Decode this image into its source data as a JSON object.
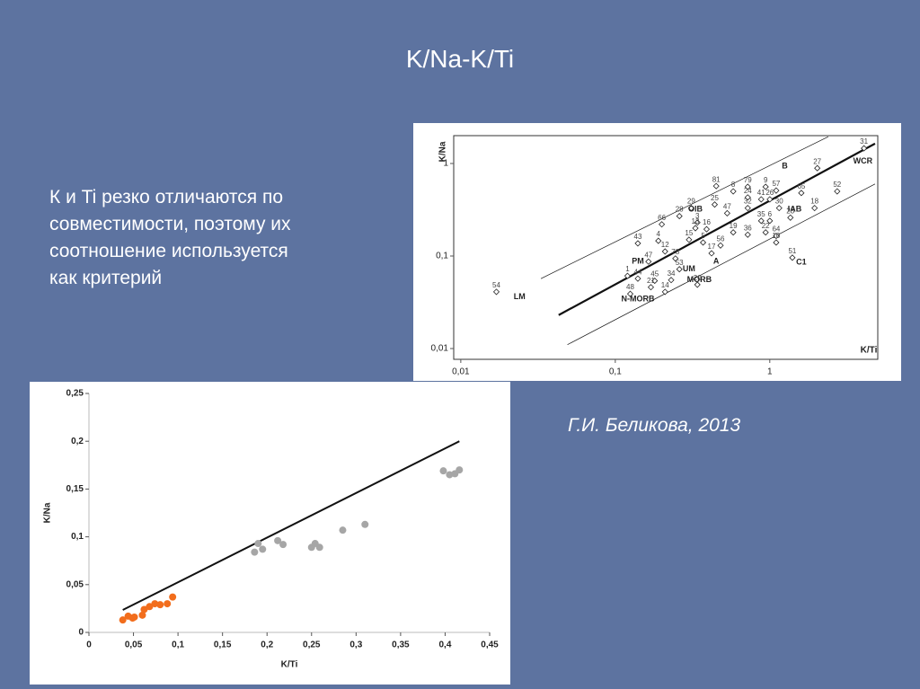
{
  "title": "K/Na-K/Ti",
  "body": [
    "К и Ti резко отличаются по",
    "совместимости, поэтому их",
    "соотношение используется",
    "как критерий"
  ],
  "citation": "Г.И. Беликова, 2013",
  "chart_data": [
    {
      "type": "scatter",
      "xlabel": "K/Ti",
      "ylabel": "K/Na",
      "log": true,
      "xlim": [
        0.009,
        5
      ],
      "ylim": [
        0.01,
        2
      ],
      "xticks": [
        {
          "value": 0.01,
          "label": "0,01"
        },
        {
          "value": 0.1,
          "label": "0,1"
        },
        1
      ],
      "yticks": [
        {
          "value": 0.01,
          "label": "0,01"
        },
        {
          "value": 0.1,
          "label": "0,1"
        },
        1
      ],
      "series": [
        {
          "color": "#222",
          "marker": "diamond",
          "labels": [
            "54",
            "31",
            "27",
            "52",
            "18",
            "65",
            "81",
            "79",
            "9",
            "57",
            "8",
            "24",
            "41",
            "26",
            "29",
            "25",
            "30",
            "32",
            "47",
            "28",
            "66",
            "3",
            "23",
            "35",
            "6",
            "13",
            "16",
            "43",
            "4",
            "12",
            "15",
            "19",
            "22",
            "64",
            "10",
            "56",
            "36",
            "17",
            "5",
            "51",
            "47",
            "78",
            "1",
            "44",
            "45",
            "20",
            "53",
            "21",
            "14",
            "48",
            "34"
          ],
          "x": [
            0.017,
            4.07,
            2.03,
            2.73,
            1.95,
            1.6,
            0.45,
            0.72,
            0.94,
            1.1,
            0.58,
            0.72,
            0.88,
            1.0,
            0.31,
            0.44,
            1.15,
            0.72,
            0.53,
            0.26,
            0.2,
            0.34,
            1.36,
            0.88,
            1.0,
            0.33,
            0.39,
            0.14,
            0.19,
            0.21,
            0.3,
            0.58,
            0.94,
            1.1,
            1.1,
            0.48,
            0.72,
            0.42,
            0.37,
            1.4,
            0.164,
            0.245,
            0.12,
            0.14,
            0.18,
            0.34,
            0.26,
            0.17,
            0.21,
            0.125,
            0.23
          ],
          "y": [
            0.041,
            1.46,
            0.89,
            0.5,
            0.33,
            0.48,
            0.57,
            0.56,
            0.56,
            0.51,
            0.5,
            0.43,
            0.41,
            0.41,
            0.33,
            0.36,
            0.33,
            0.33,
            0.29,
            0.27,
            0.22,
            0.23,
            0.26,
            0.24,
            0.24,
            0.2,
            0.195,
            0.137,
            0.146,
            0.112,
            0.15,
            0.18,
            0.18,
            0.165,
            0.14,
            0.13,
            0.17,
            0.107,
            0.14,
            0.096,
            0.087,
            0.094,
            0.061,
            0.057,
            0.054,
            0.049,
            0.072,
            0.046,
            0.041,
            0.039,
            0.055
          ]
        }
      ],
      "lines": [
        {
          "width": 2.2,
          "x": [
            0.043,
            4.8
          ],
          "y": [
            0.023,
            1.64
          ]
        },
        {
          "width": 0.7,
          "x": [
            0.033,
            2.39
          ],
          "y": [
            0.057,
            1.95
          ]
        },
        {
          "width": 0.7,
          "x": [
            0.049,
            4.8
          ],
          "y": [
            0.011,
            0.6
          ]
        }
      ],
      "annotations": [
        {
          "text": "LM",
          "x": 0.024,
          "y": 0.036
        },
        {
          "text": "WCR",
          "x": 4.0,
          "y": 1.05
        },
        {
          "text": "B",
          "x": 1.25,
          "y": 0.93
        },
        {
          "text": "OIB",
          "x": 0.33,
          "y": 0.32
        },
        {
          "text": "IAB",
          "x": 1.45,
          "y": 0.32
        },
        {
          "text": "PM",
          "x": 0.14,
          "y": 0.087
        },
        {
          "text": "A",
          "x": 0.45,
          "y": 0.087
        },
        {
          "text": "UM",
          "x": 0.3,
          "y": 0.072
        },
        {
          "text": "MORB",
          "x": 0.35,
          "y": 0.055
        },
        {
          "text": "N-MORB",
          "x": 0.14,
          "y": 0.034
        },
        {
          "text": "C1",
          "x": 1.6,
          "y": 0.085
        }
      ]
    },
    {
      "type": "scatter",
      "xlabel": "K/Ti",
      "ylabel": "K/Na",
      "log": false,
      "xlim": [
        0,
        0.45
      ],
      "ylim": [
        0,
        0.25
      ],
      "xticks": [
        0,
        {
          "value": 0.05,
          "label": "0,05"
        },
        {
          "value": 0.1,
          "label": "0,1"
        },
        {
          "value": 0.15,
          "label": "0,15"
        },
        {
          "value": 0.2,
          "label": "0,2"
        },
        {
          "value": 0.25,
          "label": "0,25"
        },
        {
          "value": 0.3,
          "label": "0,3"
        },
        {
          "value": 0.35,
          "label": "0,35"
        },
        {
          "value": 0.4,
          "label": "0,4"
        },
        {
          "value": 0.45,
          "label": "0,45"
        }
      ],
      "yticks": [
        0,
        {
          "value": 0.05,
          "label": "0,05"
        },
        {
          "value": 0.1,
          "label": "0,1"
        },
        {
          "value": 0.15,
          "label": "0,15"
        },
        {
          "value": 0.2,
          "label": "0,2"
        },
        {
          "value": 0.25,
          "label": "0,25"
        }
      ],
      "series": [
        {
          "color": "#f26d1c",
          "marker": "circle",
          "x": [
            0.038,
            0.044,
            0.049,
            0.051,
            0.06,
            0.062,
            0.068,
            0.074,
            0.08,
            0.088,
            0.094
          ],
          "y": [
            0.013,
            0.017,
            0.015,
            0.016,
            0.018,
            0.024,
            0.027,
            0.03,
            0.029,
            0.03,
            0.037
          ]
        },
        {
          "color": "#a6a6a6",
          "marker": "circle",
          "x": [
            0.186,
            0.19,
            0.195,
            0.212,
            0.218,
            0.25,
            0.254,
            0.259,
            0.285,
            0.31,
            0.398,
            0.405,
            0.411,
            0.416
          ],
          "y": [
            0.084,
            0.093,
            0.087,
            0.096,
            0.092,
            0.089,
            0.093,
            0.089,
            0.107,
            0.113,
            0.169,
            0.165,
            0.166,
            0.17
          ]
        }
      ],
      "lines": [
        {
          "width": 2,
          "x": [
            0.038,
            0.416
          ],
          "y": [
            0.0235,
            0.2
          ]
        }
      ]
    }
  ]
}
